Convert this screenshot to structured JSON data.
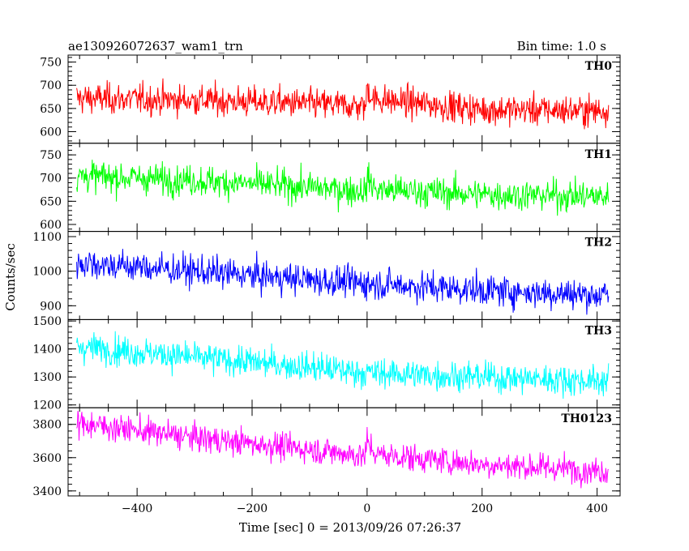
{
  "chart_data": {
    "type": "line",
    "title": "ae130926072637_wam1_trn",
    "subtitle": "Bin time: 1.0 s",
    "xlabel": "Time [sec] 0 = 2013/09/26 07:26:37",
    "ylabel": "Counts/sec",
    "xlim": [
      -520,
      440
    ],
    "x_ticks": [
      -400,
      -200,
      0,
      200,
      400
    ],
    "x_range": [
      -505,
      420
    ],
    "panels": [
      {
        "name": "TH0",
        "color": "#ff0000",
        "ylim": [
          575,
          765
        ],
        "y_ticks": [
          600,
          650,
          700,
          750
        ],
        "trend": [
          [
            -505,
            672
          ],
          [
            -300,
            668
          ],
          [
            -100,
            660
          ],
          [
            -2,
            655
          ],
          [
            0,
            700
          ],
          [
            10,
            670
          ],
          [
            200,
            648
          ],
          [
            420,
            645
          ]
        ],
        "noise": 28
      },
      {
        "name": "TH1",
        "color": "#00ff00",
        "ylim": [
          585,
          775
        ],
        "y_ticks": [
          600,
          650,
          700,
          750
        ],
        "trend": [
          [
            -505,
            705
          ],
          [
            -300,
            695
          ],
          [
            -100,
            680
          ],
          [
            -2,
            672
          ],
          [
            0,
            700
          ],
          [
            15,
            675
          ],
          [
            200,
            665
          ],
          [
            420,
            660
          ]
        ],
        "noise": 28
      },
      {
        "name": "TH2",
        "color": "#0000ff",
        "ylim": [
          860,
          1115
        ],
        "y_ticks": [
          900,
          1000,
          1100
        ],
        "trend": [
          [
            -505,
            1025
          ],
          [
            -300,
            1000
          ],
          [
            -100,
            975
          ],
          [
            0,
            965
          ],
          [
            200,
            945
          ],
          [
            420,
            930
          ]
        ],
        "noise": 38
      },
      {
        "name": "TH3",
        "color": "#00ffff",
        "ylim": [
          1190,
          1505
        ],
        "y_ticks": [
          1200,
          1300,
          1400,
          1500
        ],
        "trend": [
          [
            -505,
            1410
          ],
          [
            -300,
            1370
          ],
          [
            -100,
            1335
          ],
          [
            0,
            1315
          ],
          [
            200,
            1300
          ],
          [
            420,
            1285
          ]
        ],
        "noise": 45
      },
      {
        "name": "TH0123",
        "color": "#ff00ff",
        "ylim": [
          3370,
          3900
        ],
        "y_ticks": [
          3400,
          3600,
          3800
        ],
        "trend": [
          [
            -505,
            3810
          ],
          [
            -300,
            3720
          ],
          [
            -100,
            3650
          ],
          [
            -2,
            3610
          ],
          [
            0,
            3700
          ],
          [
            15,
            3620
          ],
          [
            200,
            3560
          ],
          [
            420,
            3520
          ]
        ],
        "noise": 70
      }
    ]
  }
}
